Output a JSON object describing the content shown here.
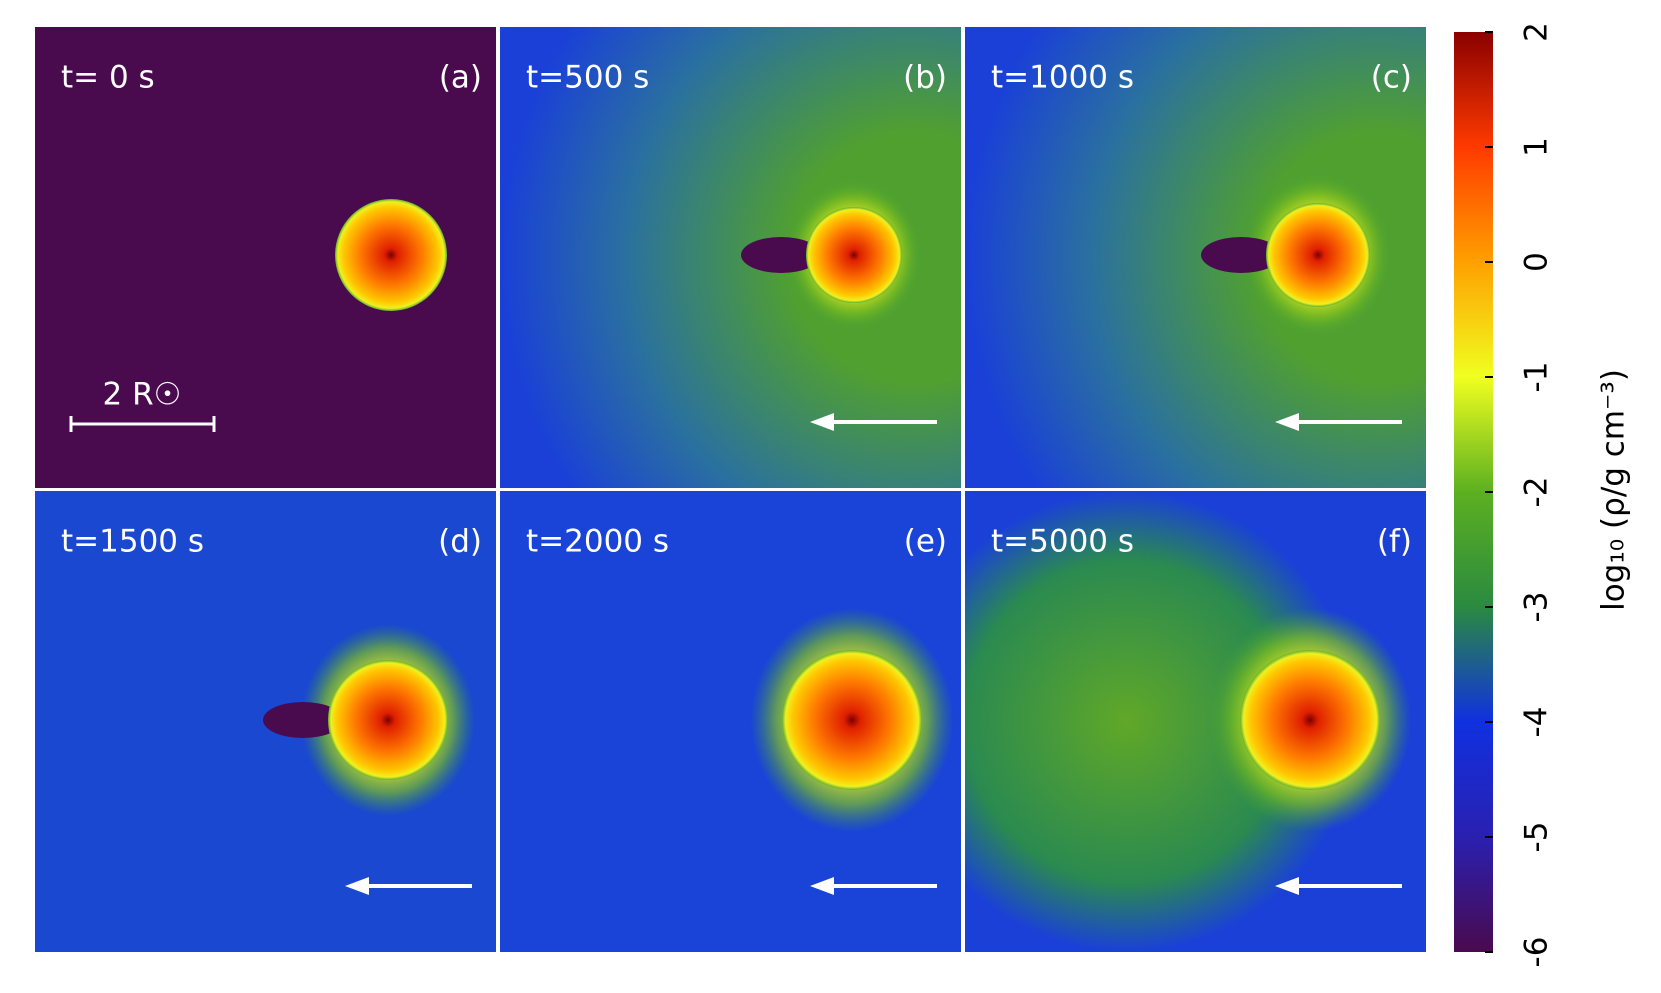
{
  "panels": [
    {
      "time": "t= 0 s",
      "label": "(a)"
    },
    {
      "time": "t=500 s",
      "label": "(b)"
    },
    {
      "time": "t=1000 s",
      "label": "(c)"
    },
    {
      "time": "t=1500 s",
      "label": "(d)"
    },
    {
      "time": "t=2000 s",
      "label": "(e)"
    },
    {
      "time": "t=5000 s",
      "label": "(f)"
    }
  ],
  "scale_bar": "2 R☉",
  "colorbar": {
    "label": "log₁₀ (ρ/g cm⁻³)",
    "lim": [
      -6,
      2
    ],
    "ticks": [
      -6,
      -5,
      -4,
      -3,
      -2,
      -1,
      0,
      1,
      2
    ],
    "colors": [
      "#4a0a4e",
      "#2a20b0",
      "#1030e0",
      "#2a8a40",
      "#5cb020",
      "#f0ff20",
      "#ffa000",
      "#ff3a00",
      "#8a0000"
    ]
  }
}
